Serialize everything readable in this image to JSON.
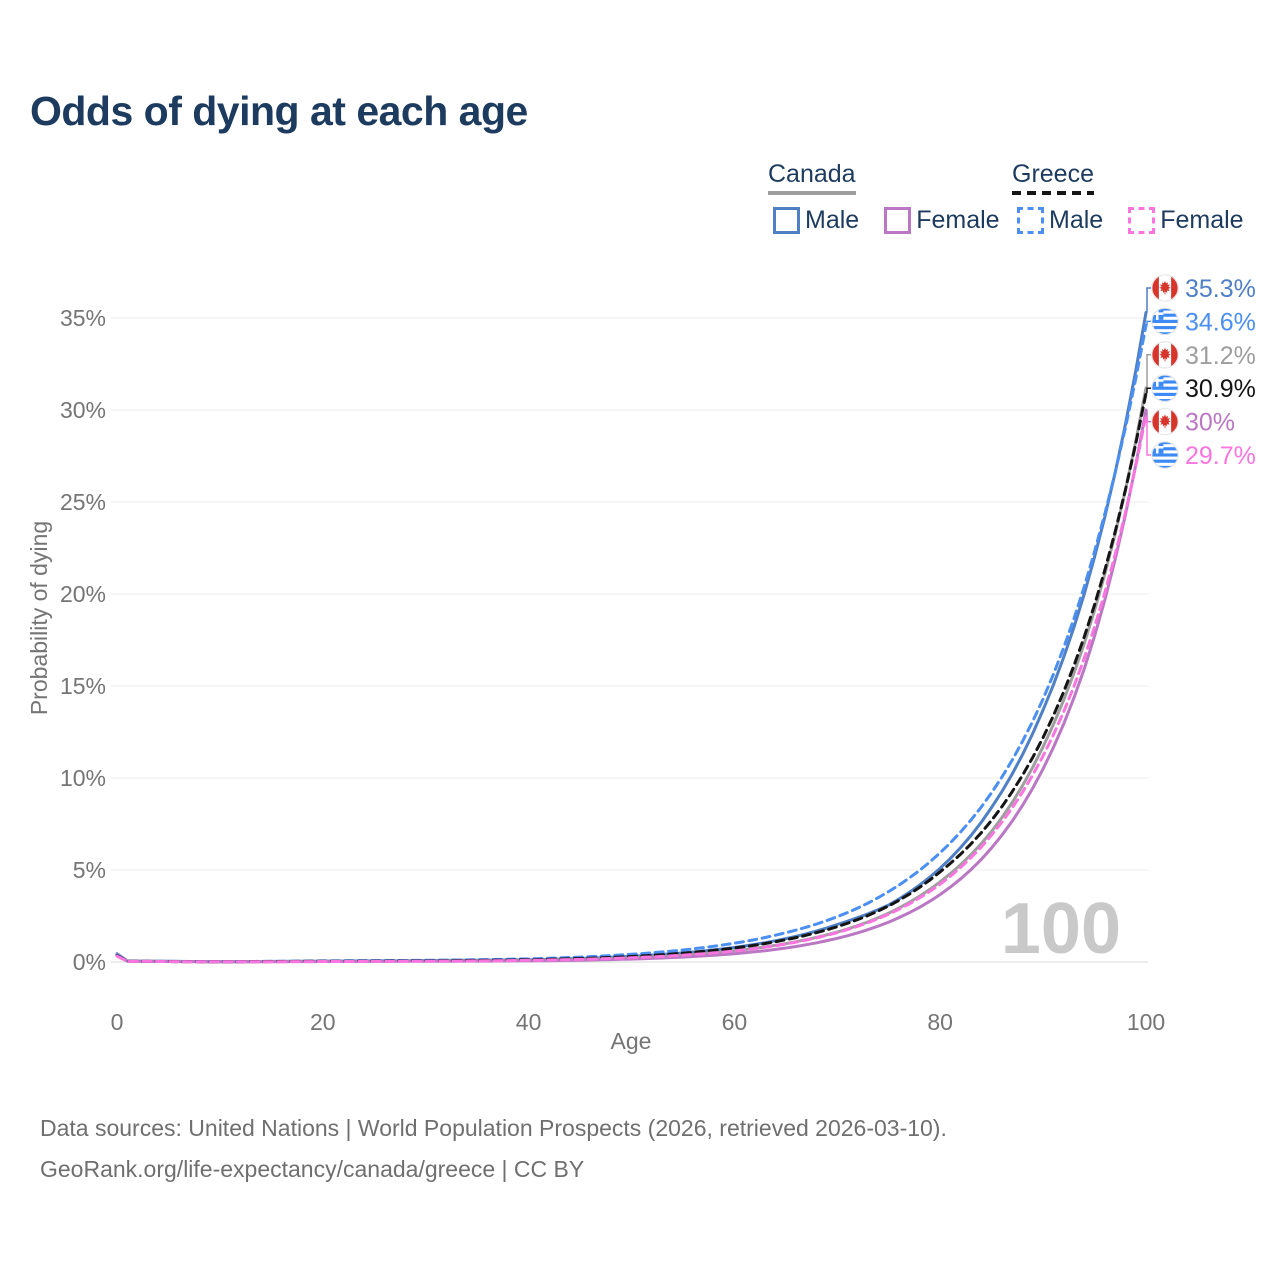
{
  "page": {
    "title": "Odds of dying at each age"
  },
  "legend": {
    "groups": [
      {
        "name": "Canada",
        "underline": "solid",
        "underline_color": "#9e9e9e",
        "items": [
          {
            "label": "Male",
            "color": "#4f7fc4",
            "dash": false
          },
          {
            "label": "Female",
            "color": "#ba77c4",
            "dash": false
          }
        ]
      },
      {
        "name": "Greece",
        "underline": "dashed",
        "underline_color": "#151515",
        "items": [
          {
            "label": "Male",
            "color": "#4b8ff2",
            "dash": true
          },
          {
            "label": "Female",
            "color": "#fa75df",
            "dash": true
          }
        ]
      }
    ]
  },
  "chart_data": {
    "type": "line",
    "title": "Odds of dying at each age",
    "xlabel": "Age",
    "ylabel": "Probability of dying",
    "xlim": [
      0,
      100
    ],
    "ylim": [
      0,
      35
    ],
    "x_ticks": [
      0,
      20,
      40,
      60,
      80,
      100
    ],
    "y_ticks": [
      0,
      5,
      10,
      15,
      20,
      25,
      30,
      35
    ],
    "y_tick_suffix": "%",
    "grid": "horizontal",
    "legend_position": "top-right",
    "watermark": "100",
    "series": [
      {
        "id": "canada-male",
        "country": "Canada",
        "sex": "Male",
        "flag": "canada",
        "color": "#4f7fc4",
        "dash": false,
        "end_label": "35.3%",
        "x": [
          0,
          1,
          10,
          20,
          30,
          40,
          50,
          60,
          65,
          70,
          75,
          80,
          85,
          90,
          95,
          100
        ],
        "y": [
          0.45,
          0.06,
          0.02,
          0.05,
          0.08,
          0.12,
          0.31,
          0.79,
          1.27,
          2.04,
          3.1,
          5.1,
          8.4,
          13.7,
          22.0,
          35.3
        ]
      },
      {
        "id": "greece-male",
        "country": "Greece",
        "sex": "Male",
        "flag": "greece",
        "color": "#4b8ff2",
        "dash": true,
        "end_label": "34.6%",
        "x": [
          0,
          1,
          10,
          20,
          30,
          40,
          50,
          60,
          65,
          70,
          75,
          80,
          85,
          90,
          95,
          100
        ],
        "y": [
          0.38,
          0.05,
          0.02,
          0.06,
          0.09,
          0.17,
          0.42,
          1.02,
          1.59,
          2.46,
          3.83,
          5.94,
          9.2,
          14.3,
          22.3,
          34.6
        ]
      },
      {
        "id": "canada-total",
        "country": "Canada",
        "sex": "Both",
        "flag": "canada",
        "color": "#9e9e9e",
        "dash": false,
        "end_label": "31.2%",
        "x": [
          0,
          1,
          10,
          20,
          30,
          40,
          50,
          60,
          65,
          70,
          75,
          80,
          85,
          90,
          95,
          100
        ],
        "y": [
          0.42,
          0.05,
          0.015,
          0.04,
          0.06,
          0.09,
          0.23,
          0.61,
          1.0,
          1.63,
          2.66,
          4.36,
          7.1,
          11.7,
          19.1,
          31.2
        ]
      },
      {
        "id": "greece-total",
        "country": "Greece",
        "sex": "Both",
        "flag": "greece",
        "color": "#151515",
        "dash": true,
        "end_label": "30.9%",
        "x": [
          0,
          1,
          10,
          20,
          30,
          40,
          50,
          60,
          65,
          70,
          75,
          80,
          85,
          90,
          95,
          100
        ],
        "y": [
          0.35,
          0.04,
          0.015,
          0.04,
          0.06,
          0.12,
          0.3,
          0.76,
          1.21,
          1.92,
          3.05,
          4.9,
          7.7,
          12.2,
          19.4,
          30.9
        ]
      },
      {
        "id": "canada-female",
        "country": "Canada",
        "sex": "Female",
        "flag": "canada",
        "color": "#ba77c4",
        "dash": false,
        "end_label": "30%",
        "x": [
          0,
          1,
          10,
          20,
          30,
          40,
          50,
          60,
          65,
          70,
          75,
          80,
          85,
          90,
          95,
          100
        ],
        "y": [
          0.4,
          0.05,
          0.012,
          0.025,
          0.04,
          0.06,
          0.16,
          0.45,
          0.76,
          1.29,
          2.17,
          3.67,
          6.2,
          10.5,
          17.7,
          30.0
        ]
      },
      {
        "id": "greece-female",
        "country": "Greece",
        "sex": "Female",
        "flag": "greece",
        "color": "#fa75df",
        "dash": true,
        "end_label": "29.7%",
        "x": [
          0,
          1,
          10,
          20,
          30,
          40,
          50,
          60,
          65,
          70,
          75,
          80,
          85,
          90,
          95,
          100
        ],
        "y": [
          0.32,
          0.04,
          0.012,
          0.025,
          0.04,
          0.09,
          0.23,
          0.6,
          0.98,
          1.6,
          2.6,
          4.23,
          6.9,
          11.2,
          18.2,
          29.7
        ]
      }
    ]
  },
  "footer": {
    "line1": "Data sources: United Nations | World Population Prospects (2026, retrieved 2026-03-10).",
    "line2": "GeoRank.org/life-expectancy/canada/greece | CC BY"
  }
}
